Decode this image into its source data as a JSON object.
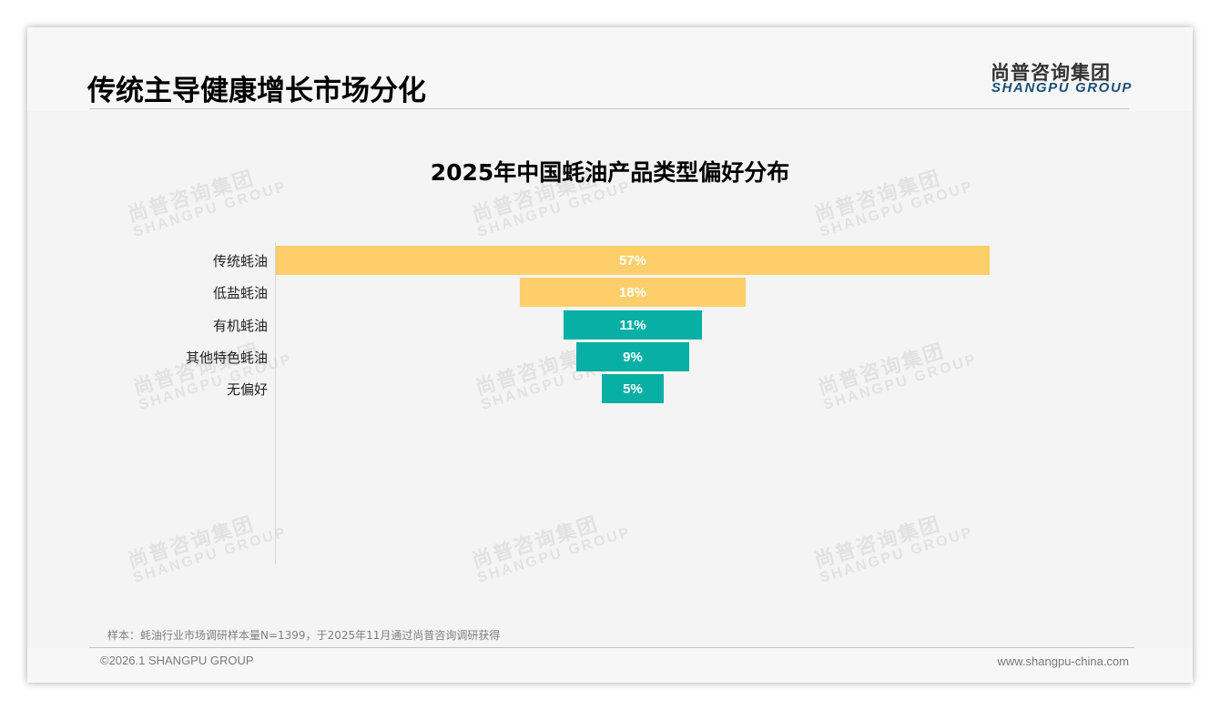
{
  "slide": {
    "title": "传统主导健康增长市场分化",
    "logo": {
      "cn": "尚普咨询集团",
      "en": "SHANGPU GROUP"
    },
    "note": "样本：蚝油行业市场调研样本量N=1399，于2025年11月通过尚普咨询调研获得",
    "footer": {
      "copyright": "©2026.1 SHANGPU GROUP",
      "website": "www.shangpu-china.com"
    },
    "watermark": {
      "cn": "尚普咨询集团",
      "en": "SHANGPU GROUP"
    }
  },
  "colors": {
    "primary_bar": "#FDCE6A",
    "secondary_bar": "#08AFA5",
    "logo_en": "#1D4F78"
  },
  "chart_data": {
    "type": "bar",
    "subtype": "funnel",
    "title": "2025年中国蚝油产品类型偏好分布",
    "xlabel": "",
    "ylabel": "",
    "categories": [
      "传统蚝油",
      "低盐蚝油",
      "有机蚝油",
      "其他特色蚝油",
      "无偏好"
    ],
    "values": [
      57,
      18,
      11,
      9,
      5
    ],
    "labels": [
      "57%",
      "18%",
      "11%",
      "9%",
      "5%"
    ],
    "unit": "%",
    "bar_colors": [
      "#FDCE6A",
      "#FDCE6A",
      "#08AFA5",
      "#08AFA5",
      "#08AFA5"
    ],
    "grid": false,
    "legend": null
  }
}
